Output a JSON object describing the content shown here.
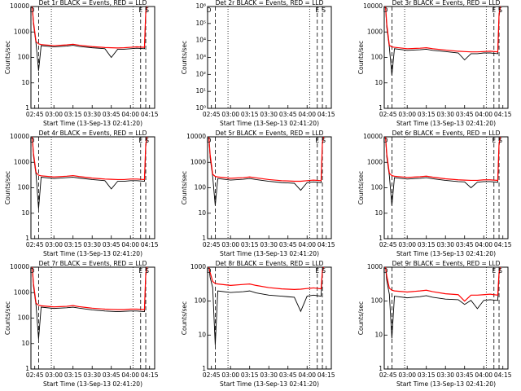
{
  "chart_data": [
    {
      "type": "line",
      "title": "Det 1r BLACK = Events, RED = LLD",
      "xlabel": "Start Time (13-Sep-13 02:41:20)",
      "ylabel": "Counts/sec",
      "log_y": true,
      "xlim": [
        "02:42",
        "04:19"
      ],
      "xticks": [
        "02:45",
        "03:00",
        "03:15",
        "03:30",
        "03:45",
        "04:00",
        "04:15"
      ],
      "ylim": [
        1,
        10000
      ],
      "yticks": [
        1,
        10,
        100,
        1000,
        10000
      ],
      "dotted_lines": [
        "02:58",
        "04:02"
      ],
      "dashed_lines": [
        "02:48",
        "04:08",
        "04:12"
      ],
      "annotations": [
        {
          "text": "D",
          "x": "02:43"
        },
        {
          "text": "E",
          "x": "04:08"
        },
        {
          "text": "S",
          "x": "04:13"
        }
      ],
      "x": [
        "02:43",
        "02:44",
        "02:46",
        "02:48",
        "02:50",
        "03:00",
        "03:10",
        "03:15",
        "03:20",
        "03:30",
        "03:40",
        "03:45",
        "03:50",
        "03:55",
        "04:00",
        "04:05",
        "04:11",
        "04:12",
        "04:13"
      ],
      "series": [
        {
          "color": "#000000",
          "values": [
            10000,
            2000,
            350,
            30,
            290,
            260,
            280,
            300,
            270,
            240,
            220,
            100,
            210,
            210,
            220,
            230,
            220,
            5000,
            10000
          ]
        },
        {
          "color": "#ff0000",
          "values": [
            10000,
            2500,
            420,
            340,
            320,
            290,
            310,
            330,
            300,
            265,
            245,
            240,
            235,
            240,
            250,
            260,
            250,
            6000,
            10000
          ]
        }
      ]
    },
    {
      "type": "line",
      "title": "Det 2r BLACK = Events, RED = LLD",
      "xlabel": "Start Time (13-Sep-13 02:41:20)",
      "ylabel": "Counts/sec",
      "log_y": true,
      "xlim": [
        "02:42",
        "04:19"
      ],
      "xticks": [
        "02:45",
        "03:00",
        "03:15",
        "03:30",
        "03:45",
        "04:00",
        "04:15"
      ],
      "ylim": [
        1,
        1000000
      ],
      "yticks": [
        {
          "value": 1,
          "label": "10⁰"
        },
        {
          "value": 10,
          "label": "10¹"
        },
        {
          "value": 100,
          "label": "10²"
        },
        {
          "value": 1000,
          "label": "10³"
        },
        {
          "value": 10000,
          "label": "10⁴"
        },
        {
          "value": 100000,
          "label": "10⁵"
        },
        {
          "value": 1000000,
          "label": "10⁶"
        }
      ],
      "dotted_lines": [
        "02:58",
        "04:02"
      ],
      "dashed_lines": [
        "02:48",
        "04:08",
        "04:12"
      ],
      "annotations": [
        {
          "text": "D",
          "x": "02:43"
        },
        {
          "text": "E",
          "x": "04:08"
        },
        {
          "text": "S",
          "x": "04:13"
        }
      ],
      "x": [],
      "series": []
    },
    {
      "type": "line",
      "title": "Det 3r BLACK = Events, RED = LLD",
      "xlabel": "Start Time (13-Sep-13 02:41:20)",
      "ylabel": "Counts/sec",
      "log_y": true,
      "xlim": [
        "02:42",
        "04:19"
      ],
      "xticks": [
        "02:45",
        "03:00",
        "03:15",
        "03:30",
        "03:45",
        "04:00",
        "04:15"
      ],
      "ylim": [
        1,
        10000
      ],
      "yticks": [
        1,
        10,
        100,
        1000,
        10000
      ],
      "dotted_lines": [
        "02:58",
        "04:02"
      ],
      "dashed_lines": [
        "02:48",
        "04:08",
        "04:12"
      ],
      "annotations": [
        {
          "text": "D",
          "x": "02:43"
        },
        {
          "text": "E",
          "x": "04:08"
        },
        {
          "text": "S",
          "x": "04:13"
        }
      ],
      "x": [
        "02:43",
        "02:44",
        "02:46",
        "02:48",
        "02:50",
        "03:00",
        "03:10",
        "03:15",
        "03:20",
        "03:30",
        "03:40",
        "03:45",
        "03:50",
        "03:55",
        "04:00",
        "04:05",
        "04:11",
        "04:12",
        "04:13"
      ],
      "series": [
        {
          "color": "#000000",
          "values": [
            10000,
            1500,
            250,
            20,
            220,
            190,
            200,
            210,
            190,
            170,
            150,
            80,
            140,
            140,
            150,
            150,
            140,
            4000,
            10000
          ]
        },
        {
          "color": "#ff0000",
          "values": [
            10000,
            2000,
            300,
            260,
            250,
            220,
            230,
            240,
            220,
            195,
            175,
            170,
            165,
            165,
            170,
            175,
            165,
            5000,
            10000
          ]
        }
      ]
    },
    {
      "type": "line",
      "title": "Det 4r BLACK = Events, RED = LLD",
      "xlabel": "Start Time (13-Sep-13 02:41:20)",
      "ylabel": "Counts/sec",
      "log_y": true,
      "xlim": [
        "02:42",
        "04:19"
      ],
      "xticks": [
        "02:45",
        "03:00",
        "03:15",
        "03:30",
        "03:45",
        "04:00",
        "04:15"
      ],
      "ylim": [
        1,
        10000
      ],
      "yticks": [
        1,
        10,
        100,
        1000,
        10000
      ],
      "dotted_lines": [
        "02:58",
        "04:02"
      ],
      "dashed_lines": [
        "02:48",
        "04:08",
        "04:12"
      ],
      "annotations": [
        {
          "text": "D",
          "x": "02:43"
        },
        {
          "text": "E",
          "x": "04:08"
        },
        {
          "text": "S",
          "x": "04:13"
        }
      ],
      "x": [
        "02:43",
        "02:44",
        "02:46",
        "02:48",
        "02:50",
        "03:00",
        "03:10",
        "03:15",
        "03:20",
        "03:30",
        "03:40",
        "03:45",
        "03:50",
        "03:55",
        "04:00",
        "04:05",
        "04:11",
        "04:12",
        "04:13"
      ],
      "series": [
        {
          "color": "#000000",
          "values": [
            10000,
            1800,
            330,
            15,
            260,
            230,
            250,
            260,
            240,
            210,
            190,
            90,
            180,
            180,
            190,
            190,
            180,
            4000,
            10000
          ]
        },
        {
          "color": "#ff0000",
          "values": [
            10000,
            2300,
            400,
            310,
            295,
            265,
            285,
            300,
            275,
            240,
            220,
            215,
            210,
            210,
            220,
            220,
            210,
            5000,
            10000
          ]
        }
      ]
    },
    {
      "type": "line",
      "title": "Det 5r BLACK = Events, RED = LLD",
      "xlabel": "Start Time (13-Sep-13 02:41:20)",
      "ylabel": "Counts/sec",
      "log_y": true,
      "xlim": [
        "02:42",
        "04:19"
      ],
      "xticks": [
        "02:45",
        "03:00",
        "03:15",
        "03:30",
        "03:45",
        "04:00",
        "04:15"
      ],
      "ylim": [
        1,
        10000
      ],
      "yticks": [
        1,
        10,
        100,
        1000,
        10000
      ],
      "dotted_lines": [
        "02:58",
        "04:02"
      ],
      "dashed_lines": [
        "02:48",
        "04:08",
        "04:12"
      ],
      "annotations": [
        {
          "text": "D",
          "x": "02:43"
        },
        {
          "text": "E",
          "x": "04:08"
        },
        {
          "text": "S",
          "x": "04:13"
        }
      ],
      "x": [
        "02:43",
        "02:44",
        "02:46",
        "02:48",
        "02:50",
        "03:00",
        "03:10",
        "03:15",
        "03:20",
        "03:30",
        "03:40",
        "03:45",
        "03:50",
        "03:55",
        "04:00",
        "04:05",
        "04:11",
        "04:12",
        "04:13"
      ],
      "series": [
        {
          "color": "#000000",
          "values": [
            10000,
            1500,
            280,
            20,
            230,
            200,
            215,
            230,
            210,
            180,
            160,
            155,
            150,
            80,
            160,
            170,
            160,
            5000,
            10000
          ]
        },
        {
          "color": "#ff0000",
          "values": [
            10000,
            2000,
            340,
            280,
            265,
            235,
            250,
            265,
            245,
            210,
            190,
            185,
            180,
            180,
            190,
            200,
            190,
            6000,
            10000
          ]
        }
      ]
    },
    {
      "type": "line",
      "title": "Det 6r BLACK = Events, RED = LLD",
      "xlabel": "Start Time (13-Sep-13 02:41:20)",
      "ylabel": "Counts/sec",
      "log_y": true,
      "xlim": [
        "02:42",
        "04:19"
      ],
      "xticks": [
        "02:45",
        "03:00",
        "03:15",
        "03:30",
        "03:45",
        "04:00",
        "04:15"
      ],
      "ylim": [
        1,
        10000
      ],
      "yticks": [
        1,
        10,
        100,
        1000,
        10000
      ],
      "dotted_lines": [
        "02:58",
        "04:02"
      ],
      "dashed_lines": [
        "02:48",
        "04:08",
        "04:12"
      ],
      "annotations": [
        {
          "text": "D",
          "x": "02:43"
        },
        {
          "text": "E",
          "x": "04:08"
        },
        {
          "text": "S",
          "x": "04:13"
        }
      ],
      "x": [
        "02:43",
        "02:44",
        "02:46",
        "02:48",
        "02:50",
        "03:00",
        "03:10",
        "03:15",
        "03:20",
        "03:30",
        "03:40",
        "03:45",
        "03:50",
        "03:55",
        "04:00",
        "04:05",
        "04:11",
        "04:12",
        "04:13"
      ],
      "series": [
        {
          "color": "#000000",
          "values": [
            10000,
            1600,
            300,
            20,
            250,
            220,
            235,
            250,
            225,
            195,
            175,
            170,
            100,
            165,
            175,
            175,
            165,
            4500,
            10000
          ]
        },
        {
          "color": "#ff0000",
          "values": [
            10000,
            2100,
            370,
            300,
            285,
            255,
            270,
            285,
            260,
            225,
            205,
            200,
            195,
            195,
            205,
            205,
            195,
            5500,
            10000
          ]
        }
      ]
    },
    {
      "type": "line",
      "title": "Det 7r BLACK = Events, RED = LLD",
      "xlabel": "Start Time (13-Sep-13 02:41:20)",
      "ylabel": "Counts/sec",
      "log_y": true,
      "xlim": [
        "02:42",
        "04:19"
      ],
      "xticks": [
        "02:45",
        "03:00",
        "03:15",
        "03:30",
        "03:45",
        "04:00",
        "04:15"
      ],
      "ylim": [
        1,
        10000
      ],
      "yticks": [
        1,
        10,
        100,
        1000,
        10000
      ],
      "dotted_lines": [
        "02:58",
        "04:02"
      ],
      "dashed_lines": [
        "02:48",
        "04:08",
        "04:12"
      ],
      "annotations": [
        {
          "text": "D",
          "x": "02:43"
        },
        {
          "text": "E",
          "x": "04:08"
        },
        {
          "text": "S",
          "x": "04:13"
        }
      ],
      "x": [
        "02:43",
        "02:44",
        "02:46",
        "02:48",
        "02:50",
        "03:00",
        "03:10",
        "03:15",
        "03:20",
        "03:30",
        "03:40",
        "03:45",
        "03:50",
        "03:55",
        "04:00",
        "04:05",
        "04:11",
        "04:12",
        "04:13"
      ],
      "series": [
        {
          "color": "#000000",
          "values": [
            10000,
            1800,
            320,
            15,
            270,
            240,
            255,
            270,
            245,
            210,
            190,
            185,
            180,
            185,
            190,
            190,
            180,
            4500,
            10000
          ]
        },
        {
          "color": "#ff0000",
          "values": [
            10000,
            2300,
            390,
            320,
            305,
            275,
            290,
            310,
            280,
            245,
            225,
            220,
            215,
            215,
            225,
            225,
            215,
            5500,
            10000
          ]
        }
      ]
    },
    {
      "type": "line",
      "title": "Det 8r BLACK = Events, RED = LLD",
      "xlabel": "Start Time (13-Sep-13 02:41:20)",
      "ylabel": "Counts/sec",
      "log_y": true,
      "xlim": [
        "02:42",
        "04:19"
      ],
      "xticks": [
        "02:45",
        "03:00",
        "03:15",
        "03:30",
        "03:45",
        "04:00",
        "04:15"
      ],
      "ylim": [
        1,
        1000
      ],
      "yticks": [
        1,
        10,
        100,
        1000
      ],
      "dotted_lines": [
        "02:58",
        "04:02"
      ],
      "dashed_lines": [
        "02:48",
        "04:08",
        "04:12"
      ],
      "annotations": [
        {
          "text": "D",
          "x": "02:43"
        },
        {
          "text": "E",
          "x": "04:08"
        },
        {
          "text": "S",
          "x": "04:13"
        }
      ],
      "x": [
        "02:43",
        "02:44",
        "02:46",
        "02:48",
        "02:50",
        "03:00",
        "03:10",
        "03:15",
        "03:20",
        "03:30",
        "03:40",
        "03:45",
        "03:50",
        "03:55",
        "04:00",
        "04:05",
        "04:11",
        "04:12",
        "04:13"
      ],
      "series": [
        {
          "color": "#000000",
          "values": [
            1000,
            500,
            250,
            5,
            200,
            180,
            190,
            200,
            175,
            150,
            140,
            135,
            130,
            50,
            140,
            150,
            140,
            700,
            1000
          ]
        },
        {
          "color": "#ff0000",
          "values": [
            1000,
            700,
            380,
            330,
            320,
            290,
            310,
            320,
            290,
            250,
            230,
            225,
            220,
            225,
            235,
            245,
            230,
            800,
            1000
          ]
        }
      ]
    },
    {
      "type": "line",
      "title": "Det 9r BLACK = Events, RED = LLD",
      "xlabel": "Start Time (13-Sep-13 02:41:20)",
      "ylabel": "Counts/sec",
      "log_y": true,
      "xlim": [
        "02:42",
        "04:19"
      ],
      "xticks": [
        "02:45",
        "03:00",
        "03:15",
        "03:30",
        "03:45",
        "04:00",
        "04:15"
      ],
      "ylim": [
        1,
        1000
      ],
      "yticks": [
        1,
        10,
        100,
        1000
      ],
      "dotted_lines": [
        "02:58",
        "04:02"
      ],
      "dashed_lines": [
        "02:48",
        "04:08",
        "04:12"
      ],
      "annotations": [
        {
          "text": "D",
          "x": "02:43"
        },
        {
          "text": "E",
          "x": "04:08"
        },
        {
          "text": "S",
          "x": "04:13"
        }
      ],
      "x": [
        "02:43",
        "02:44",
        "02:46",
        "02:48",
        "02:50",
        "03:00",
        "03:10",
        "03:15",
        "03:20",
        "03:30",
        "03:40",
        "03:45",
        "03:50",
        "03:55",
        "04:00",
        "04:05",
        "04:11",
        "04:12",
        "04:13"
      ],
      "series": [
        {
          "color": "#000000",
          "values": [
            1000,
            400,
            160,
            8,
            140,
            125,
            135,
            145,
            130,
            115,
            110,
            80,
            105,
            60,
            105,
            110,
            105,
            600,
            1000
          ]
        },
        {
          "color": "#ff0000",
          "values": [
            1000,
            550,
            240,
            210,
            200,
            185,
            200,
            210,
            190,
            165,
            155,
            100,
            150,
            150,
            155,
            160,
            150,
            700,
            1000
          ]
        }
      ]
    }
  ]
}
